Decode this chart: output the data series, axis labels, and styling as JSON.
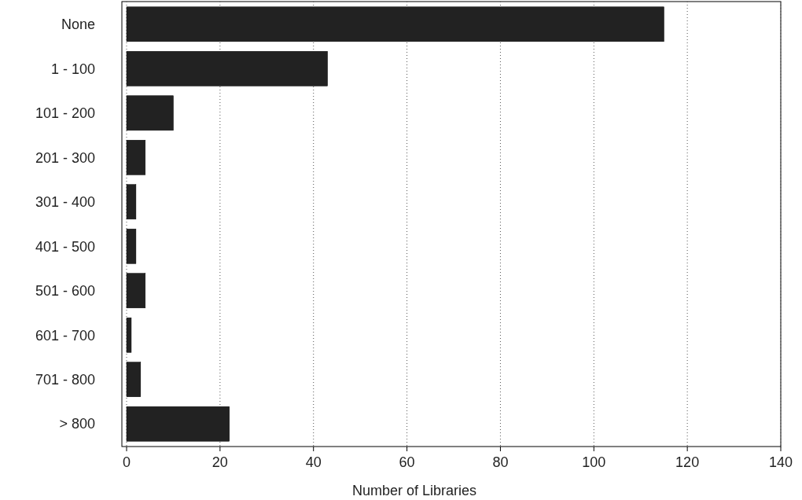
{
  "chart_data": {
    "type": "bar",
    "orientation": "horizontal",
    "categories": [
      "None",
      "1 - 100",
      "101 - 200",
      "201 - 300",
      "301 - 400",
      "401 - 500",
      "501 - 600",
      "601 - 700",
      "701 - 800",
      "> 800"
    ],
    "values": [
      115,
      43,
      10,
      4,
      2,
      2,
      4,
      1,
      3,
      22
    ],
    "color": "#222222",
    "xlabel": "Number of Libraries",
    "xlim": [
      0,
      140
    ],
    "xticks": [
      0,
      20,
      40,
      60,
      80,
      100,
      120,
      140
    ],
    "grid": "x"
  }
}
